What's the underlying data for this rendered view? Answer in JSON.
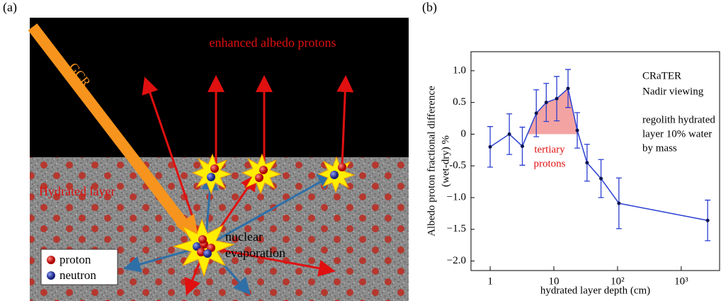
{
  "panel_a": {
    "label": "(a)",
    "gcr": "GCR",
    "albedo": "enhanced albedo protons",
    "layer": "Hydrated layer",
    "evaporation": [
      "nuclear",
      "evaporation"
    ],
    "legend": [
      "proton",
      "neutron"
    ]
  },
  "chart_data": {
    "type": "line",
    "panel_label": "(b)",
    "x_label": "hydrated layer depth (cm)",
    "y_label": [
      "Albedo proton fractional difference",
      "(wet-dry) %"
    ],
    "x": [
      1,
      2,
      3.2,
      5.3,
      7.6,
      11.1,
      16.7,
      23.3,
      33.2,
      55,
      105,
      2600
    ],
    "series": [
      {
        "color": "#2a3fd0",
        "values": [
          -0.2,
          0,
          -0.19,
          0.33,
          0.5,
          0.56,
          0.72,
          0.06,
          -0.45,
          -0.7,
          -1.09,
          -1.36
        ],
        "errors": [
          0.32,
          0.32,
          0.3,
          0.37,
          0.3,
          0.35,
          0.3,
          0.28,
          0.29,
          0.3,
          0.4,
          0.32
        ]
      }
    ],
    "xscale": "log",
    "xlim": [
      0.5,
      4000
    ],
    "xticks": [
      1,
      10,
      {
        "value": 100,
        "label": "10²"
      },
      {
        "value": 1000,
        "label": "10³"
      }
    ],
    "ylim": [
      -2.15,
      1.3
    ],
    "yticks": [
      {
        "value": 1,
        "label": "1.0"
      },
      0.5,
      0,
      -0.5,
      {
        "value": -1,
        "label": "−1.0"
      },
      {
        "value": -1.5,
        "label": "−1.5"
      },
      {
        "value": -2,
        "label": "−2.0"
      }
    ],
    "shade_color": "#f4a3a3",
    "annotations": [
      "CRaTER",
      "Nadir viewing",
      "regolith hydrated",
      "layer 10% water",
      "by mass"
    ],
    "shade_annotation": [
      "tertiary",
      "protons"
    ]
  }
}
